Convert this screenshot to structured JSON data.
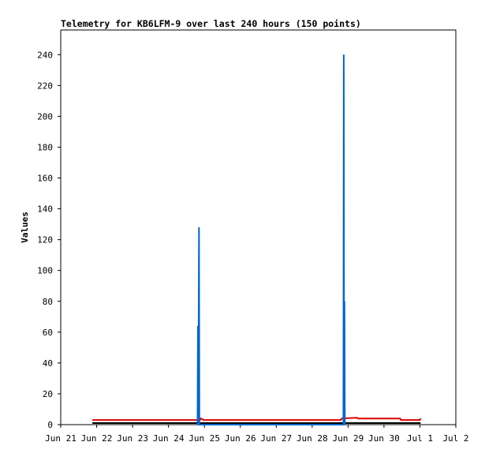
{
  "chart_data": {
    "type": "line",
    "title": "Telemetry for KB6LFM-9 over last 240 hours (150 points)",
    "y_label": "Values",
    "xlim": [
      21,
      32
    ],
    "xticks": [
      {
        "value": 21,
        "label": "Jun 21"
      },
      {
        "value": 22,
        "label": "Jun 22"
      },
      {
        "value": 23,
        "label": "Jun 23"
      },
      {
        "value": 24,
        "label": "Jun 24"
      },
      {
        "value": 25,
        "label": "Jun 25"
      },
      {
        "value": 26,
        "label": "Jun 26"
      },
      {
        "value": 27,
        "label": "Jun 27"
      },
      {
        "value": 28,
        "label": "Jun 28"
      },
      {
        "value": 29,
        "label": "Jun 29"
      },
      {
        "value": 30,
        "label": "Jun 30"
      },
      {
        "value": 31,
        "label": "Jul 1"
      },
      {
        "value": 32,
        "label": "Jul 2"
      }
    ],
    "ylim": [
      0,
      256
    ],
    "yticks": [
      0,
      20,
      40,
      60,
      80,
      100,
      120,
      140,
      160,
      180,
      200,
      220,
      240
    ],
    "grid": false,
    "series": [
      {
        "color": "#000000",
        "x": [
          21.88,
          31.02
        ],
        "values": [
          1,
          1
        ]
      },
      {
        "color": "#dd0000",
        "x": [
          21.88,
          24.88,
          24.9,
          24.95,
          24.97,
          28.8,
          28.82,
          29.25,
          29.27,
          30.45,
          30.47,
          31.0,
          31.02
        ],
        "values": [
          3,
          3,
          4,
          3.5,
          3,
          3,
          4,
          4.5,
          4,
          4,
          3,
          3,
          4
        ]
      },
      {
        "color": "#0066cc",
        "x": [
          24.81,
          24.82,
          24.83,
          24.85,
          24.86,
          28.87,
          28.88,
          28.89,
          28.9,
          28.91
        ],
        "values": [
          0,
          64,
          0,
          128,
          0,
          0,
          240,
          0,
          80,
          0
        ]
      }
    ]
  }
}
